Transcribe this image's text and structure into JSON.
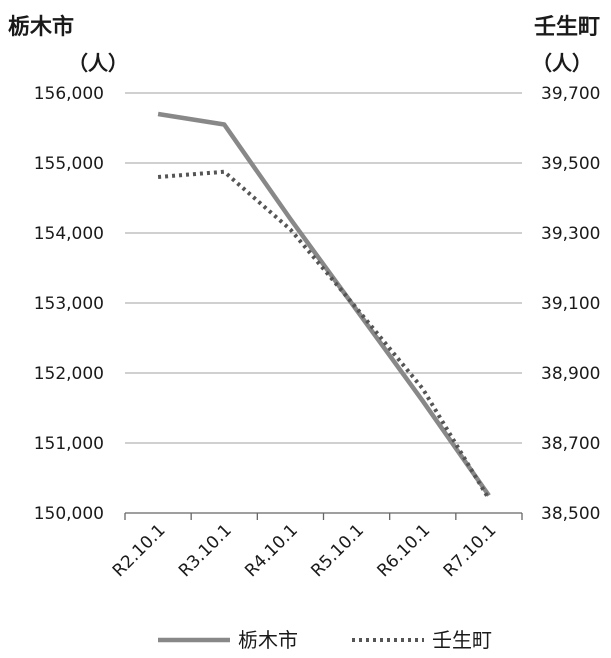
{
  "chart_data": {
    "type": "line",
    "left_axis": {
      "title": "栃木市",
      "unit": "（人）",
      "ylim": [
        150000,
        156000
      ],
      "tick_labels": [
        "150,000",
        "151,000",
        "152,000",
        "153,000",
        "154,000",
        "155,000",
        "156,000"
      ]
    },
    "right_axis": {
      "title": "壬生町",
      "unit": "（人）",
      "ylim": [
        38500,
        39700
      ],
      "tick_labels": [
        "38,500",
        "38,700",
        "38,900",
        "39,100",
        "39,300",
        "39,500",
        "39,700"
      ]
    },
    "categories": [
      "R2.10.1",
      "R3.10.1",
      "R4.10.1",
      "R5.10.1",
      "R6.10.1",
      "R7.10.1"
    ],
    "series": [
      {
        "name": "栃木市",
        "axis": "left",
        "style": "solid",
        "color": "#888888",
        "values": [
          155700,
          155550,
          154200,
          152900,
          151600,
          150250
        ]
      },
      {
        "name": "壬生町",
        "axis": "right",
        "style": "dotted",
        "color": "#555555",
        "values": [
          39460,
          39475,
          39310,
          39085,
          38855,
          38540
        ]
      }
    ],
    "grid": true,
    "legend_position": "bottom"
  }
}
